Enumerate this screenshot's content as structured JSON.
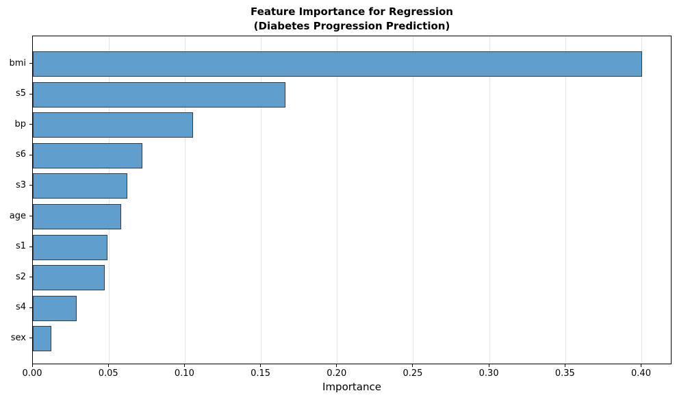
{
  "chart_data": {
    "type": "bar",
    "orientation": "horizontal",
    "title": "Feature Importance for Regression\n(Diabetes Progression Prediction)",
    "xlabel": "Importance",
    "ylabel": "",
    "categories": [
      "bmi",
      "s5",
      "bp",
      "s6",
      "s3",
      "age",
      "s1",
      "s2",
      "s4",
      "sex"
    ],
    "values": [
      0.4,
      0.166,
      0.105,
      0.072,
      0.062,
      0.058,
      0.049,
      0.047,
      0.029,
      0.012
    ],
    "xlim": [
      0,
      0.42
    ],
    "xticks": [
      0.0,
      0.05,
      0.1,
      0.15,
      0.2,
      0.25,
      0.3,
      0.35,
      0.4
    ],
    "grid": "vertical gridlines only, light gray",
    "legend": "none",
    "colors": {
      "bar_fill": "#5f9ecd",
      "bar_edge": "#333b44",
      "gridline": "#e4e4e4",
      "spine": "#000000",
      "background": "#ffffff"
    }
  }
}
